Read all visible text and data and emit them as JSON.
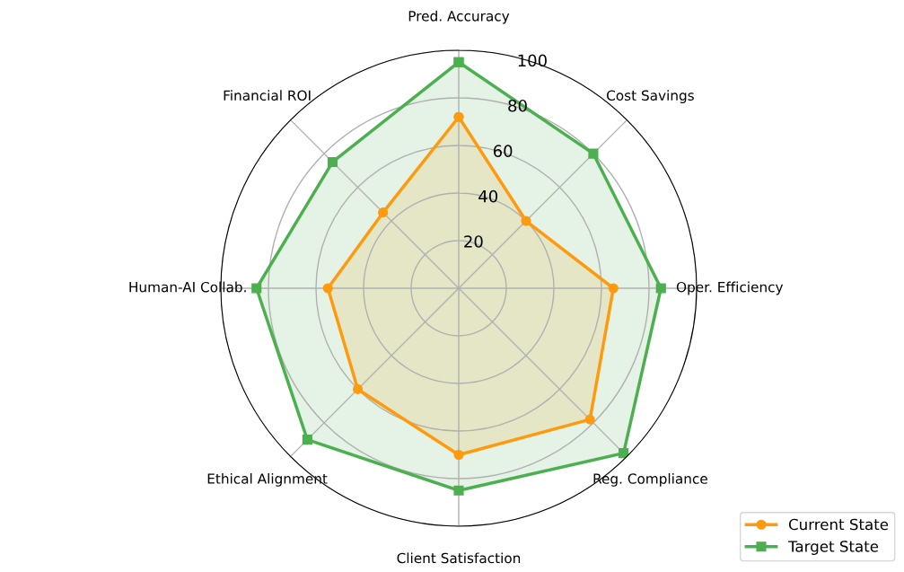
{
  "chart_data": {
    "type": "radar",
    "categories": [
      "Pred. Accuracy",
      "Cost Savings",
      "Oper. Efficiency",
      "Reg. Compliance",
      "Client Satisfaction",
      "Ethical Alignment",
      "Human-AI Collab.",
      "Financial ROI"
    ],
    "series": [
      {
        "name": "Current State",
        "color": "#ff9a0e",
        "marker": "circle",
        "values": [
          72,
          40,
          65,
          78,
          70,
          60,
          55,
          45
        ]
      },
      {
        "name": "Target State",
        "color": "#4caf50",
        "marker": "square",
        "values": [
          95,
          80,
          85,
          98,
          85,
          90,
          85,
          75
        ]
      }
    ],
    "ylim": [
      0,
      100
    ],
    "yticks": [
      20,
      40,
      60,
      80,
      100
    ],
    "grid": true,
    "legend": "bottom right"
  }
}
